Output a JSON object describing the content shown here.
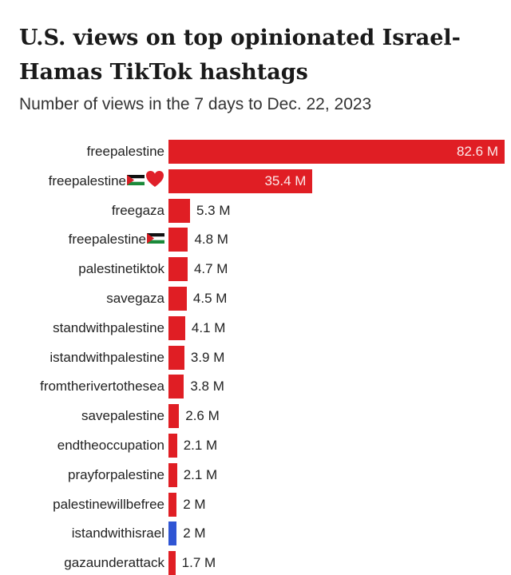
{
  "chart_data": {
    "type": "bar",
    "orientation": "horizontal",
    "title": "U.S. views on top opinionated Israel-Hamas TikTok hashtags",
    "subtitle": "Number of views in the 7 days to Dec. 22, 2023",
    "unit": "M",
    "xlim": [
      0,
      82.6
    ],
    "grid": false,
    "colors": {
      "pro_palestine": "#e01e24",
      "pro_israel": "#2f55d4"
    },
    "categories": [
      {
        "label": "freepalestine",
        "emoji": []
      },
      {
        "label": "freepalestine",
        "emoji": [
          "palestine-flag-icon",
          "red-heart-icon"
        ]
      },
      {
        "label": "freegaza",
        "emoji": []
      },
      {
        "label": "freepalestine",
        "emoji": [
          "palestine-flag-icon"
        ]
      },
      {
        "label": "palestinetiktok",
        "emoji": []
      },
      {
        "label": "savegaza",
        "emoji": []
      },
      {
        "label": "standwithpalestine",
        "emoji": []
      },
      {
        "label": "istandwithpalestine",
        "emoji": []
      },
      {
        "label": "fromtherivertothesea",
        "emoji": []
      },
      {
        "label": "savepalestine",
        "emoji": []
      },
      {
        "label": "endtheoccupation",
        "emoji": []
      },
      {
        "label": "prayforpalestine",
        "emoji": []
      },
      {
        "label": "palestinewillbefree",
        "emoji": []
      },
      {
        "label": "istandwithisrael",
        "emoji": []
      },
      {
        "label": "gazaunderattack",
        "emoji": []
      }
    ],
    "values": [
      82.6,
      35.4,
      5.3,
      4.8,
      4.7,
      4.5,
      4.1,
      3.9,
      3.8,
      2.6,
      2.1,
      2.1,
      2,
      2,
      1.7
    ],
    "value_labels": [
      "82.6 M",
      "35.4 M",
      "5.3 M",
      "4.8 M",
      "4.7 M",
      "4.5 M",
      "4.1 M",
      "3.9 M",
      "3.8 M",
      "2.6 M",
      "2.1 M",
      "2.1 M",
      "2 M",
      "2 M",
      "1.7 M"
    ],
    "bar_colors": [
      "pro_palestine",
      "pro_palestine",
      "pro_palestine",
      "pro_palestine",
      "pro_palestine",
      "pro_palestine",
      "pro_palestine",
      "pro_palestine",
      "pro_palestine",
      "pro_palestine",
      "pro_palestine",
      "pro_palestine",
      "pro_palestine",
      "pro_israel",
      "pro_palestine"
    ]
  }
}
